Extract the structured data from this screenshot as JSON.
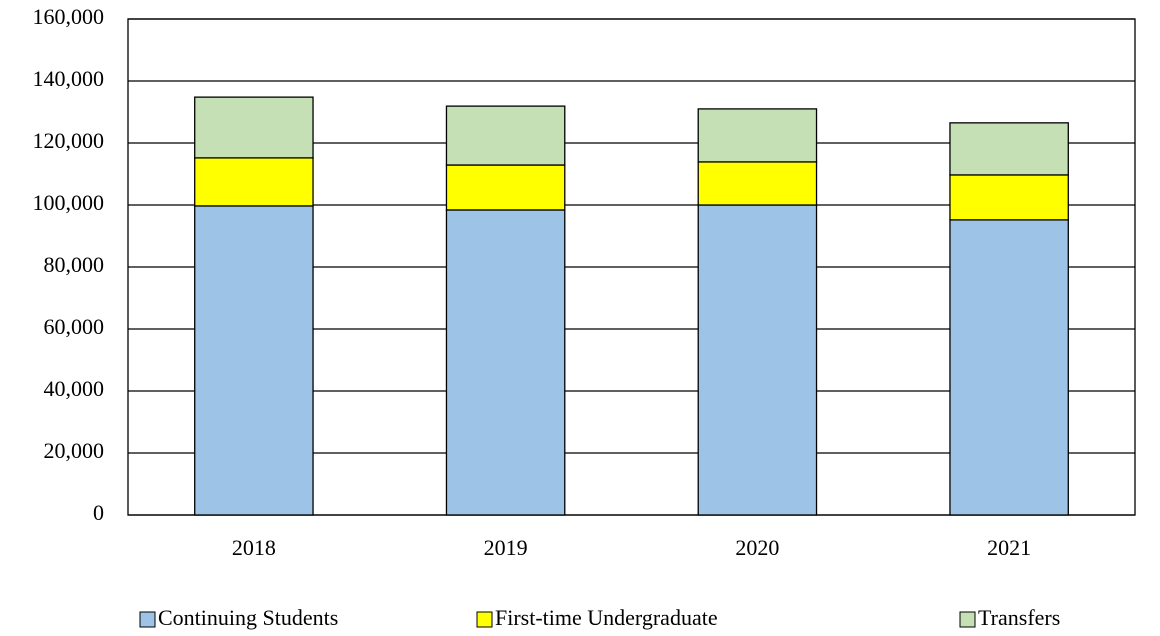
{
  "chart_data": {
    "type": "stacked_bar",
    "categories": [
      "2018",
      "2019",
      "2020",
      "2021"
    ],
    "series": [
      {
        "name": "Continuing Students",
        "color": "#9dc3e6",
        "values": [
          99700,
          98400,
          100000,
          95200
        ]
      },
      {
        "name": "First-time Undergraduate",
        "color": "#ffff00",
        "values": [
          15500,
          14500,
          13900,
          14500
        ]
      },
      {
        "name": "Transfers",
        "color": "#c5e0b4",
        "values": [
          19600,
          19000,
          17100,
          16800
        ]
      }
    ],
    "ylim": [
      0,
      160000
    ],
    "yticks": [
      0,
      {
        "value": 20000,
        "label": "20,000"
      },
      {
        "value": 40000,
        "label": "40,000"
      },
      {
        "value": 60000,
        "label": "60,000"
      },
      {
        "value": 80000,
        "label": "80,000"
      },
      {
        "value": 100000,
        "label": "100,000"
      },
      {
        "value": 120000,
        "label": "120,000"
      },
      {
        "value": 140000,
        "label": "140,000"
      },
      {
        "value": 160000,
        "label": "160,000"
      }
    ],
    "grid": true,
    "legend": "bottom"
  }
}
